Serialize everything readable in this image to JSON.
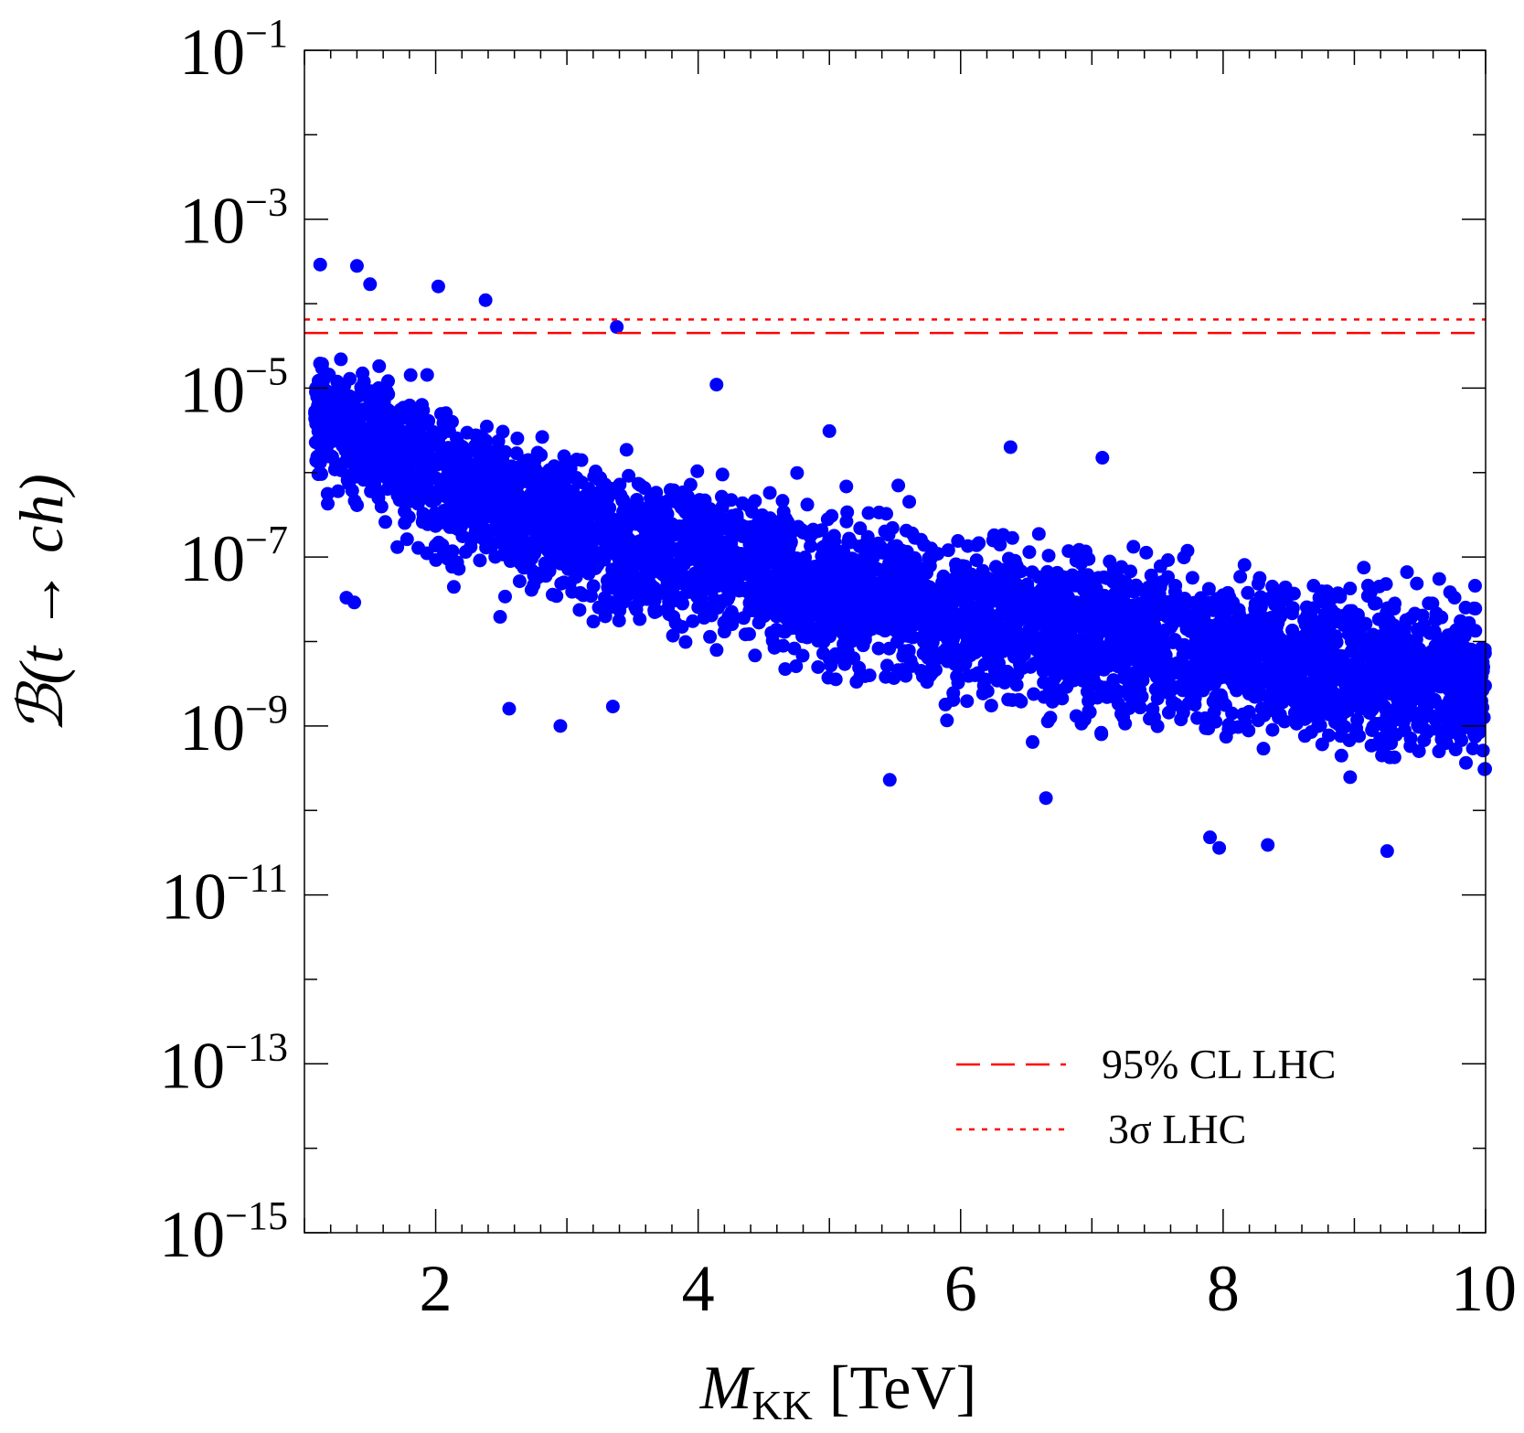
{
  "chart_data": {
    "type": "scatter",
    "title": "",
    "xlabel": {
      "main": "M",
      "sub": "KK",
      "unit": "[TeV]"
    },
    "ylabel": "ℬ(t → ch)",
    "xlim": [
      1,
      10
    ],
    "ylim_log10": [
      -15,
      -1
    ],
    "yscale": "log",
    "x_ticks": [
      {
        "value": 2,
        "label": "2"
      },
      {
        "value": 4,
        "label": "4"
      },
      {
        "value": 6,
        "label": "6"
      },
      {
        "value": 8,
        "label": "8"
      },
      {
        "value": 10,
        "label": "10"
      }
    ],
    "y_ticks": [
      {
        "exp": -1,
        "base": "10",
        "sup": "−1"
      },
      {
        "exp": -3,
        "base": "10",
        "sup": "−3"
      },
      {
        "exp": -5,
        "base": "10",
        "sup": "−5"
      },
      {
        "exp": -7,
        "base": "10",
        "sup": "−7"
      },
      {
        "exp": -9,
        "base": "10",
        "sup": "−9"
      },
      {
        "exp": -11,
        "base": "10",
        "sup": "−11"
      },
      {
        "exp": -13,
        "base": "10",
        "sup": "−13"
      },
      {
        "exp": -15,
        "base": "10",
        "sup": "−15"
      }
    ],
    "grid": false,
    "legend_position": "bottom-right",
    "series": [
      {
        "point_color": "#0000ff",
        "trend_log10": [
          {
            "x": 1.0,
            "center": -5.2,
            "upper": -4.1,
            "lower": -6.3
          },
          {
            "x": 2.0,
            "center": -6.0,
            "upper": -4.7,
            "lower": -7.6
          },
          {
            "x": 3.0,
            "center": -6.6,
            "upper": -5.4,
            "lower": -8.0
          },
          {
            "x": 4.0,
            "center": -7.0,
            "upper": -5.7,
            "lower": -8.3
          },
          {
            "x": 5.0,
            "center": -7.4,
            "upper": -5.9,
            "lower": -8.7
          },
          {
            "x": 6.0,
            "center": -7.7,
            "upper": -6.2,
            "lower": -9.1
          },
          {
            "x": 7.0,
            "center": -7.9,
            "upper": -6.5,
            "lower": -9.4
          },
          {
            "x": 8.0,
            "center": -8.1,
            "upper": -6.6,
            "lower": -9.5
          },
          {
            "x": 9.0,
            "center": -8.3,
            "upper": -6.8,
            "lower": -9.8
          },
          {
            "x": 10.0,
            "center": -8.5,
            "upper": -6.9,
            "lower": -10.0
          }
        ],
        "outliers": [
          {
            "x": 1.12,
            "y": 0.00029
          },
          {
            "x": 1.4,
            "y": 0.00028
          },
          {
            "x": 1.5,
            "y": 0.00017
          },
          {
            "x": 2.02,
            "y": 0.00016
          },
          {
            "x": 2.38,
            "y": 0.00011
          },
          {
            "x": 3.38,
            "y": 5.3e-05
          },
          {
            "x": 4.14,
            "y": 1.1e-05
          },
          {
            "x": 5.0,
            "y": 3.1e-06
          },
          {
            "x": 6.38,
            "y": 2e-06
          },
          {
            "x": 7.08,
            "y": 1.5e-06
          },
          {
            "x": 1.32,
            "y": 3.3e-08
          },
          {
            "x": 1.38,
            "y": 2.9e-08
          },
          {
            "x": 2.56,
            "y": 1.6e-09
          },
          {
            "x": 2.95,
            "y": 1e-09
          },
          {
            "x": 3.35,
            "y": 1.7e-09
          },
          {
            "x": 5.46,
            "y": 2.3e-10
          },
          {
            "x": 6.65,
            "y": 1.4e-10
          },
          {
            "x": 7.9,
            "y": 4.8e-11
          },
          {
            "x": 7.97,
            "y": 3.6e-11
          },
          {
            "x": 8.34,
            "y": 3.9e-11
          },
          {
            "x": 9.25,
            "y": 3.3e-11
          }
        ]
      }
    ],
    "reference_lines": [
      {
        "name": "95% CL  LHC",
        "y": 4.5e-05,
        "style": "dashed",
        "color": "#ff0000"
      },
      {
        "name": "3σ LHC",
        "y": 6.5e-05,
        "style": "dotted",
        "color": "#ff0000"
      }
    ]
  }
}
